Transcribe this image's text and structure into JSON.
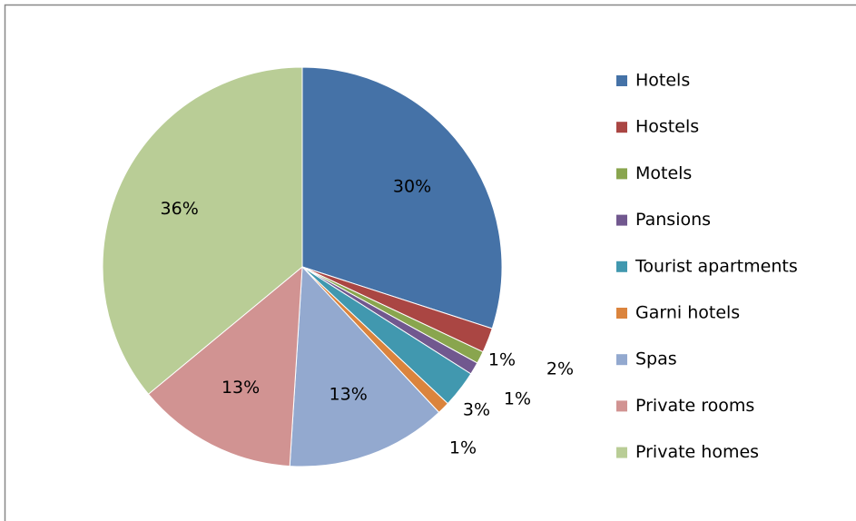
{
  "chart_data": {
    "type": "pie",
    "categories": [
      "Hotels",
      "Hostels",
      "Motels",
      "Pansions",
      "Tourist apartments",
      "Garni hotels",
      "Spas",
      "Private rooms",
      "Private homes"
    ],
    "values": [
      30,
      2,
      1,
      1,
      3,
      1,
      13,
      13,
      36
    ],
    "value_labels": [
      "30%",
      "2%",
      "1%",
      "1%",
      "3%",
      "1%",
      "13%",
      "13%",
      "36%"
    ],
    "colors": [
      "#4572a7",
      "#aa4643",
      "#89a54e",
      "#71588f",
      "#4198af",
      "#db843d",
      "#93a9cf",
      "#d19392",
      "#b9cd96"
    ],
    "legend": "right"
  }
}
